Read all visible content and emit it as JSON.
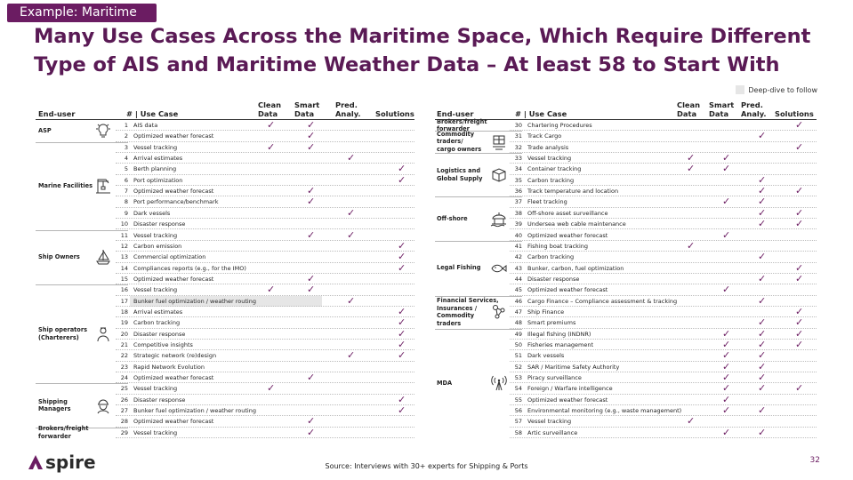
{
  "tag": "Example: Maritime",
  "title": "Many Use Cases Across the Maritime Space, Which Require Different Type of AIS and Maritime Weather Data – At least 58 to Start With",
  "legend_label": "Deep-dive to follow",
  "colors": {
    "accent": "#6b1c62",
    "deep_dive": "#e6e6e6"
  },
  "check_glyph": "✓",
  "columns": {
    "end_user": "End-user",
    "use_case": "# | Use Case",
    "clean": "Clean\nData",
    "smart": "Smart\nData",
    "pred": "Pred.\nAnaly.",
    "solutions": "Solutions"
  },
  "left_groups": [
    {
      "label": "ASP",
      "icon": "lightbulb-icon",
      "rows": [
        {
          "num": "1",
          "text": "AIS data",
          "checks": [
            true,
            true,
            false,
            false
          ]
        },
        {
          "num": "2",
          "text": "Optimized weather forecast",
          "checks": [
            false,
            true,
            false,
            false
          ]
        }
      ]
    },
    {
      "label": "Marine Facilities",
      "icon": "dock-crane-icon",
      "rows": [
        {
          "num": "3",
          "text": "Vessel tracking",
          "checks": [
            true,
            true,
            false,
            false
          ]
        },
        {
          "num": "4",
          "text": "Arrival estimates",
          "checks": [
            false,
            false,
            true,
            false
          ]
        },
        {
          "num": "5",
          "text": "Berth planning",
          "checks": [
            false,
            false,
            false,
            true
          ]
        },
        {
          "num": "6",
          "text": "Port optimization",
          "checks": [
            false,
            false,
            false,
            true
          ]
        },
        {
          "num": "7",
          "text": "Optimized weather forecast",
          "checks": [
            false,
            true,
            false,
            false
          ]
        },
        {
          "num": "8",
          "text": "Port performance/benchmark",
          "checks": [
            false,
            true,
            false,
            false
          ]
        },
        {
          "num": "9",
          "text": "Dark vessels",
          "checks": [
            false,
            false,
            true,
            false
          ]
        },
        {
          "num": "10",
          "text": "Disaster response",
          "checks": [
            false,
            false,
            false,
            false
          ]
        }
      ]
    },
    {
      "label": "Ship Owners",
      "icon": "sailboat-icon",
      "rows": [
        {
          "num": "11",
          "text": "Vessel tracking",
          "checks": [
            false,
            true,
            true,
            false
          ]
        },
        {
          "num": "12",
          "text": "Carbon emission",
          "checks": [
            false,
            false,
            false,
            true
          ]
        },
        {
          "num": "13",
          "text": "Commercial optimization",
          "checks": [
            false,
            false,
            false,
            true
          ]
        },
        {
          "num": "14",
          "text": "Compliances reports (e.g., for the IMO)",
          "checks": [
            false,
            false,
            false,
            true
          ]
        },
        {
          "num": "15",
          "text": "Optimized weather forecast",
          "checks": [
            false,
            true,
            false,
            false
          ]
        }
      ]
    },
    {
      "label": "Ship operators\n(Charterers)",
      "icon": "ship-operator-icon",
      "rows": [
        {
          "num": "16",
          "text": "Vessel tracking",
          "checks": [
            true,
            true,
            false,
            false
          ]
        },
        {
          "num": "17",
          "text": "Bunker fuel optimization / weather routing",
          "checks": [
            false,
            false,
            true,
            false
          ],
          "deep": true
        },
        {
          "num": "18",
          "text": "Arrival estimates",
          "checks": [
            false,
            false,
            false,
            true
          ]
        },
        {
          "num": "19",
          "text": "Carbon tracking",
          "checks": [
            false,
            false,
            false,
            true
          ]
        },
        {
          "num": "20",
          "text": "Disaster response",
          "checks": [
            false,
            false,
            false,
            true
          ]
        },
        {
          "num": "21",
          "text": "Competitive insights",
          "checks": [
            false,
            false,
            false,
            true
          ]
        },
        {
          "num": "22",
          "text": "Strategic network (re)design",
          "checks": [
            false,
            false,
            true,
            true
          ]
        },
        {
          "num": "23",
          "text": "Rapid Network Evolution",
          "checks": [
            false,
            false,
            false,
            false
          ]
        },
        {
          "num": "24",
          "text": "Optimized weather forecast",
          "checks": [
            false,
            true,
            false,
            false
          ]
        }
      ]
    },
    {
      "label": "Shipping\nManagers",
      "icon": "worker-helmet-icon",
      "rows": [
        {
          "num": "25",
          "text": "Vessel tracking",
          "checks": [
            true,
            false,
            false,
            false
          ]
        },
        {
          "num": "26",
          "text": "Disaster response",
          "checks": [
            false,
            false,
            false,
            true
          ]
        },
        {
          "num": "27",
          "text": "Bunker fuel optimization / weather routing",
          "checks": [
            false,
            false,
            false,
            true
          ]
        },
        {
          "num": "28",
          "text": "Optimized weather forecast",
          "checks": [
            false,
            true,
            false,
            false
          ]
        }
      ]
    },
    {
      "label": "Brokers/freight\nforwarder",
      "icon": "",
      "rows": [
        {
          "num": "29",
          "text": "Vessel tracking",
          "checks": [
            false,
            true,
            false,
            false
          ]
        }
      ]
    }
  ],
  "right_groups": [
    {
      "label": "Brokers/freight\nforwarder",
      "icon": "",
      "rows": [
        {
          "num": "30",
          "text": "Chartering Procedures",
          "checks": [
            false,
            false,
            false,
            true
          ]
        }
      ]
    },
    {
      "label": "Commodity\ntraders/\ncargo owners",
      "icon": "cargo-trader-icon",
      "rows": [
        {
          "num": "31",
          "text": "Track Cargo",
          "checks": [
            false,
            false,
            true,
            false
          ]
        },
        {
          "num": "32",
          "text": "Trade analysis",
          "checks": [
            false,
            false,
            false,
            true
          ]
        }
      ]
    },
    {
      "label": "Logistics and\nGlobal Supply",
      "icon": "package-icon",
      "rows": [
        {
          "num": "33",
          "text": "Vessel tracking",
          "checks": [
            true,
            true,
            false,
            false
          ]
        },
        {
          "num": "34",
          "text": "Container tracking",
          "checks": [
            true,
            true,
            false,
            false
          ]
        },
        {
          "num": "35",
          "text": "Carbon tracking",
          "checks": [
            false,
            false,
            true,
            false
          ]
        },
        {
          "num": "36",
          "text": "Track temperature and location",
          "checks": [
            false,
            false,
            true,
            true
          ]
        }
      ]
    },
    {
      "label": "Off-shore",
      "icon": "oil-rig-icon",
      "rows": [
        {
          "num": "37",
          "text": "Fleet tracking",
          "checks": [
            false,
            true,
            true,
            false
          ]
        },
        {
          "num": "38",
          "text": "Off-shore asset surveillance",
          "checks": [
            false,
            false,
            true,
            true
          ]
        },
        {
          "num": "39",
          "text": "Undersea web cable maintenance",
          "checks": [
            false,
            false,
            true,
            true
          ]
        },
        {
          "num": "40",
          "text": "Optimized weather forecast",
          "checks": [
            false,
            true,
            false,
            false
          ]
        }
      ]
    },
    {
      "label": "Legal Fishing",
      "icon": "fish-icon",
      "rows": [
        {
          "num": "41",
          "text": "Fishing boat tracking",
          "checks": [
            true,
            false,
            false,
            false
          ]
        },
        {
          "num": "42",
          "text": "Carbon tracking",
          "checks": [
            false,
            false,
            true,
            false
          ]
        },
        {
          "num": "43",
          "text": "Bunker, carbon, fuel optimization",
          "checks": [
            false,
            false,
            false,
            true
          ]
        },
        {
          "num": "44",
          "text": "Disaster response",
          "checks": [
            false,
            false,
            true,
            true
          ]
        },
        {
          "num": "45",
          "text": "Optimized weather forecast",
          "checks": [
            false,
            true,
            false,
            false
          ]
        }
      ]
    },
    {
      "label": "Financial Services,\nInsurances /\nCommodity\ntraders",
      "icon": "finance-network-icon",
      "rows": [
        {
          "num": "46",
          "text": "Cargo Finance – Compliance assessment & tracking",
          "checks": [
            false,
            false,
            true,
            false
          ]
        },
        {
          "num": "47",
          "text": "Ship Finance",
          "checks": [
            false,
            false,
            false,
            true
          ]
        },
        {
          "num": "48",
          "text": "Smart premiums",
          "checks": [
            false,
            false,
            true,
            true
          ]
        }
      ]
    },
    {
      "label": "MDA",
      "icon": "signal-tower-icon",
      "rows": [
        {
          "num": "49",
          "text": "Illegal fishing (INDNR)",
          "checks": [
            false,
            true,
            true,
            true
          ]
        },
        {
          "num": "50",
          "text": "Fisheries management",
          "checks": [
            false,
            true,
            true,
            true
          ]
        },
        {
          "num": "51",
          "text": "Dark vessels",
          "checks": [
            false,
            true,
            true,
            false
          ]
        },
        {
          "num": "52",
          "text": "SAR / Maritime Safety Authority",
          "checks": [
            false,
            true,
            true,
            false
          ]
        },
        {
          "num": "53",
          "text": "Piracy surveillance",
          "checks": [
            false,
            true,
            true,
            false
          ]
        },
        {
          "num": "54",
          "text": "Foreign / Warfare intelligence",
          "checks": [
            false,
            true,
            true,
            true
          ]
        },
        {
          "num": "55",
          "text": "Optimized weather forecast",
          "checks": [
            false,
            true,
            false,
            false
          ]
        },
        {
          "num": "56",
          "text": "Environmental monitoring (e.g., waste management)",
          "checks": [
            false,
            true,
            true,
            false
          ]
        },
        {
          "num": "57",
          "text": "Vessel tracking",
          "checks": [
            true,
            false,
            false,
            false
          ]
        },
        {
          "num": "58",
          "text": "Artic surveillance",
          "checks": [
            false,
            true,
            true,
            false
          ]
        }
      ]
    }
  ],
  "logo_text": "spire",
  "source": "Source: Interviews with 30+ experts for Shipping & Ports",
  "page_number": "32"
}
